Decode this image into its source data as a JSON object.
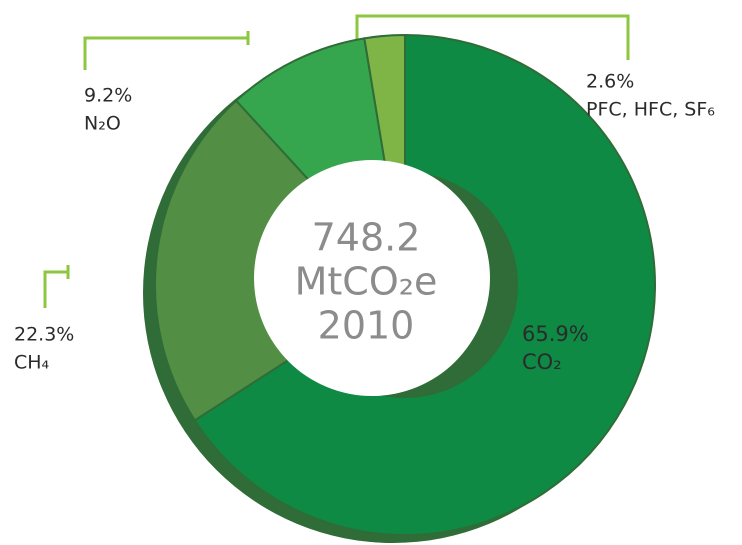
{
  "chart_data": {
    "type": "donut",
    "center_text": [
      "748.2",
      "MtCO₂e",
      "2010"
    ],
    "categories": [
      "CO₂",
      "CH₄",
      "N₂O",
      "PFC, HFC, SF₆"
    ],
    "values": [
      65.9,
      22.3,
      9.2,
      2.6
    ],
    "value_labels": [
      "65.9%",
      "22.3%",
      "9.2%",
      "2.6%"
    ],
    "colors": [
      "#0e8a45",
      "#538e45",
      "#35a64d",
      "#7fb447"
    ]
  }
}
